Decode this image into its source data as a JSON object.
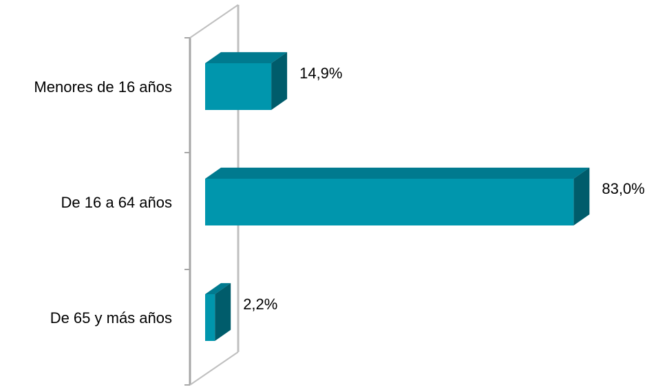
{
  "chart_data": {
    "type": "bar",
    "orientation": "horizontal",
    "style": "3d",
    "categories": [
      "Menores de 16 años",
      "De 16 a 64 años",
      "De 65 y más  años"
    ],
    "values": [
      14.9,
      83.0,
      2.2
    ],
    "value_labels": [
      "14,9%",
      "83,0%",
      "2,2%"
    ],
    "unit": "%",
    "xlim": [
      0,
      100
    ],
    "grid": false,
    "legend": "none",
    "colors": {
      "bar_front": "#0096ad",
      "bar_top": "#007a8f",
      "bar_side": "#005c6b",
      "axis": "#a6a6a6",
      "axis_back": "#bfbfbf"
    }
  }
}
